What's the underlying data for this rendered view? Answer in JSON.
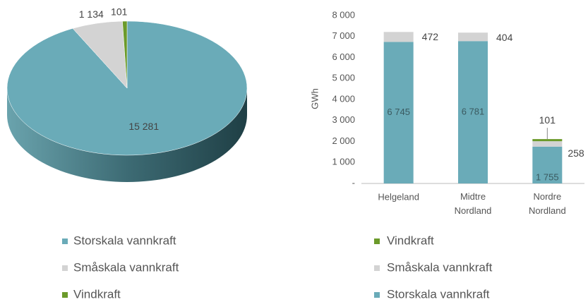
{
  "chart_data": [
    {
      "type": "pie",
      "categories": [
        "Storskala vannkraft",
        "Småskala vannkraft",
        "Vindkraft"
      ],
      "values": [
        15281,
        1134,
        101
      ],
      "value_labels": [
        "15 281",
        "1 134",
        "101"
      ],
      "colors": [
        "#6aabb8",
        "#d3d3d3",
        "#6b9a2a"
      ],
      "legend": "bottom"
    },
    {
      "type": "bar",
      "stacked": true,
      "ylabel": "GWh",
      "categories": [
        "Helgeland",
        "Midtre Nordland",
        "Nordre Nordland"
      ],
      "series": [
        {
          "name": "Storskala vannkraft",
          "color": "#6aabb8",
          "values": [
            6745,
            6781,
            1755
          ],
          "value_labels": [
            "6 745",
            "6 781",
            "1 755"
          ]
        },
        {
          "name": "Småskala vannkraft",
          "color": "#d3d3d3",
          "values": [
            472,
            404,
            258
          ]
        },
        {
          "name": "Vindkraft",
          "color": "#6b9a2a",
          "values": [
            null,
            null,
            101
          ]
        }
      ],
      "ylim": [
        0,
        8000
      ],
      "yticks": [
        {
          "value": 0,
          "label": "-"
        },
        {
          "value": 1000,
          "label": "1 000"
        },
        {
          "value": 2000,
          "label": "2 000"
        },
        {
          "value": 3000,
          "label": "3 000"
        },
        {
          "value": 4000,
          "label": "4 000"
        },
        {
          "value": 5000,
          "label": "5 000"
        },
        {
          "value": 6000,
          "label": "6 000"
        },
        {
          "value": 7000,
          "label": "7 000"
        },
        {
          "value": 8000,
          "label": "8 000"
        }
      ],
      "legend": "bottom"
    }
  ]
}
